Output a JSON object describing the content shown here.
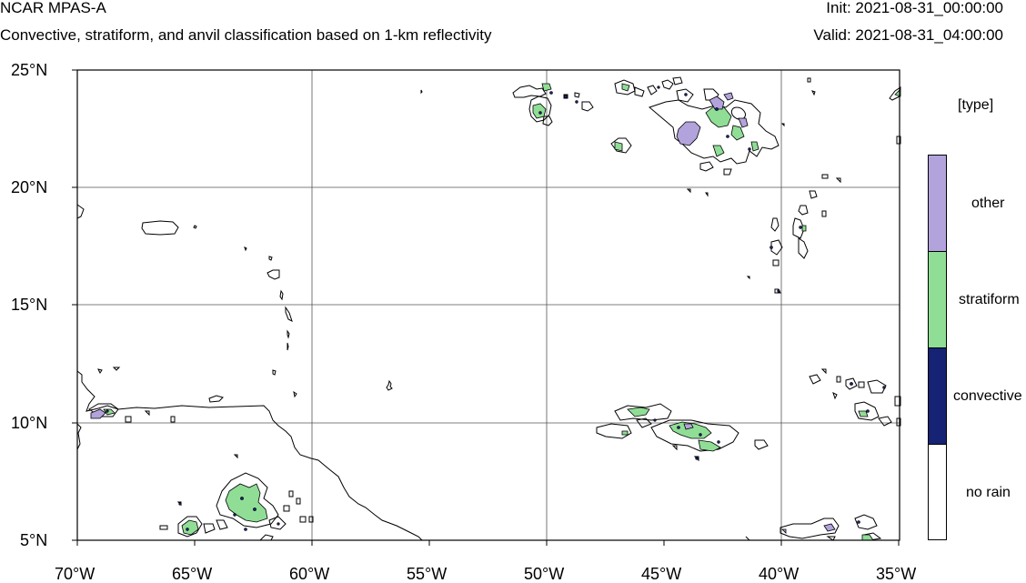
{
  "header": {
    "model_title": "NCAR MPAS-A",
    "subtitle": "Convective, stratiform, and anvil classification based on 1-km reflectivity",
    "init_time": "Init: 2021-08-31_00:00:00",
    "valid_time": "Valid: 2021-08-31_04:00:00"
  },
  "map": {
    "lon_range": [
      -70,
      -35
    ],
    "lat_range": [
      5,
      25
    ],
    "grid": true,
    "lat_ticks": [
      "25°N",
      "20°N",
      "15°N",
      "10°N",
      "5°N"
    ],
    "lon_ticks": [
      "70°W",
      "65°W",
      "60°W",
      "55°W",
      "50°W",
      "45°W",
      "40°W",
      "35°W"
    ]
  },
  "legend": {
    "title": "[type]",
    "position": "right",
    "items": [
      {
        "label": "other",
        "color": "#b2a3dc"
      },
      {
        "label": "stratiform",
        "color": "#90de96"
      },
      {
        "label": "convective",
        "color": "#162375"
      },
      {
        "label": "no rain",
        "color": "#ffffff"
      }
    ]
  }
}
